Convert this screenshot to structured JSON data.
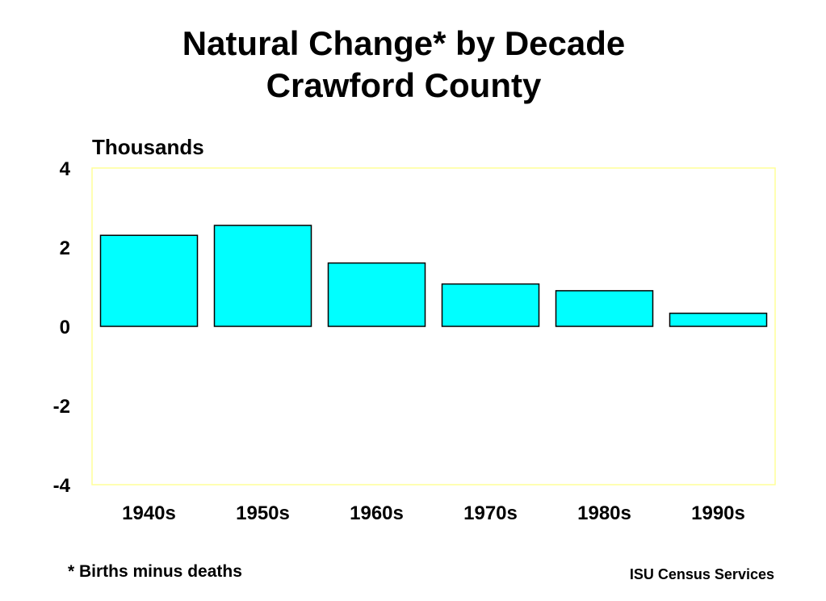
{
  "chart_data": {
    "type": "bar",
    "title": "Natural Change* by Decade",
    "subtitle": "Crawford County",
    "ylabel": "Thousands",
    "xlabel": "",
    "categories": [
      "1940s",
      "1950s",
      "1960s",
      "1970s",
      "1980s",
      "1990s"
    ],
    "values": [
      2.3,
      2.55,
      1.6,
      1.07,
      0.9,
      0.33
    ],
    "ylim": [
      -4,
      4
    ],
    "yticks": [
      "4",
      "2",
      "0",
      "-2",
      "-4"
    ],
    "ytick_values": [
      4,
      2,
      0,
      -2,
      -4
    ],
    "grid": false,
    "legend": "none",
    "colors": {
      "bar_fill": "#00FFFF",
      "bar_stroke": "#000000",
      "plot_border": "#FFFF99"
    }
  },
  "footnote": "* Births minus deaths",
  "credit": "ISU Census Services"
}
